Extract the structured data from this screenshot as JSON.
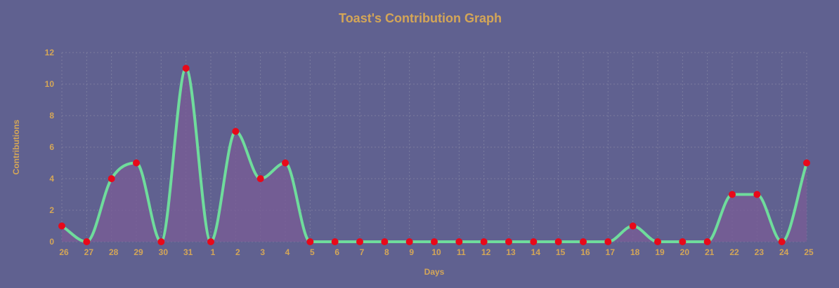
{
  "chart_data": {
    "type": "line",
    "title": "Toast's Contribution Graph",
    "xlabel": "Days",
    "ylabel": "Contributions",
    "categories": [
      "26",
      "27",
      "28",
      "29",
      "30",
      "31",
      "1",
      "2",
      "3",
      "4",
      "5",
      "6",
      "7",
      "8",
      "9",
      "10",
      "11",
      "12",
      "13",
      "14",
      "15",
      "16",
      "17",
      "18",
      "19",
      "20",
      "21",
      "22",
      "23",
      "24",
      "25"
    ],
    "series": [
      {
        "values": [
          1,
          0,
          4,
          5,
          0,
          11,
          0,
          7,
          4,
          5,
          0,
          0,
          0,
          0,
          0,
          0,
          0,
          0,
          0,
          0,
          0,
          0,
          0,
          1,
          0,
          0,
          0,
          3,
          3,
          0,
          5
        ]
      }
    ],
    "ylim": [
      0,
      12
    ],
    "yticks": [
      0,
      2,
      4,
      6,
      8,
      10,
      12
    ],
    "grid": true,
    "smooth": true,
    "filled_area": true,
    "colors": {
      "background": "#606190",
      "text": "#d4a657",
      "line": "#6fdc9c",
      "point": "#e8091a",
      "fill": "#7a5c95",
      "grid": "#7b7c9e"
    }
  }
}
